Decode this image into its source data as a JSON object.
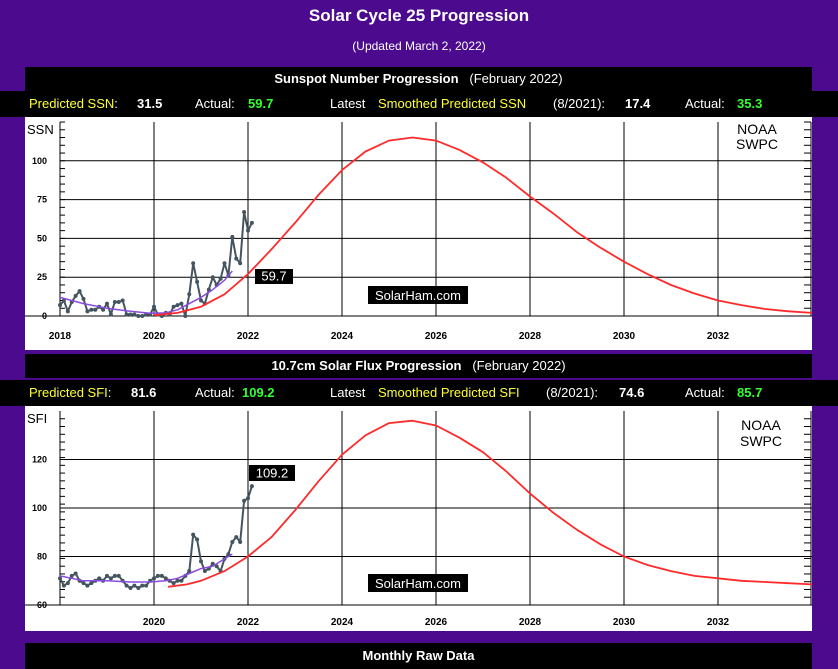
{
  "page": {
    "title": "Solar Cycle 25 Progression",
    "subtitle": "(Updated March 2, 2022)",
    "footer": "Monthly Raw Data"
  },
  "ssn_panel": {
    "title": "Sunspot Number Progression",
    "period": "(February 2022)",
    "pred_label": "Predicted SSN",
    "pred_value": "31.5",
    "actual_label": "Actual:",
    "actual_value": "59.7",
    "latest_label": "Latest",
    "smoothed_label": "Smoothed Predicted SSN",
    "smoothed_date": "(8/2021):",
    "smoothed_value": "17.4",
    "actual2_label": "Actual:",
    "actual2_value": "35.3"
  },
  "sfi_panel": {
    "title": "10.7cm Solar Flux Progression",
    "period": "(February 2022)",
    "pred_label": "Predicted SFI",
    "pred_value": "81.6",
    "actual_label": "Actual:",
    "actual_value": "109.2",
    "latest_label": "Latest",
    "smoothed_label": "Smoothed Predicted SFI",
    "smoothed_date": "(8/2021):",
    "smoothed_value": "74.6",
    "actual2_label": "Actual:",
    "actual2_value": "85.7"
  },
  "colors": {
    "background": "#4c0a8e",
    "yellow": "#ffff33",
    "green": "#33ff33",
    "prediction": "#ff2a2a",
    "smoothed": "#8a4be0",
    "monthly": "#445560"
  },
  "chart_data": [
    {
      "type": "line",
      "title": "Sunspot Number Progression",
      "ylabel": "SSN",
      "ylim": [
        0,
        125
      ],
      "xlim": [
        2018,
        2034
      ],
      "x_ticks": [
        2018,
        2020,
        2022,
        2024,
        2026,
        2028,
        2030,
        2032
      ],
      "y_ticks": [
        0,
        25,
        50,
        75,
        100
      ],
      "annotation": "59.7",
      "credit": [
        "NOAA",
        "SWPC"
      ],
      "watermark": "SolarHam.com",
      "series": [
        {
          "name": "Monthly",
          "x": [
            2018.0,
            2018.083,
            2018.167,
            2018.25,
            2018.333,
            2018.417,
            2018.5,
            2018.583,
            2018.667,
            2018.75,
            2018.833,
            2018.917,
            2019.0,
            2019.083,
            2019.167,
            2019.25,
            2019.333,
            2019.417,
            2019.5,
            2019.583,
            2019.667,
            2019.75,
            2019.833,
            2019.917,
            2020.0,
            2020.083,
            2020.167,
            2020.25,
            2020.333,
            2020.417,
            2020.5,
            2020.583,
            2020.667,
            2020.75,
            2020.833,
            2020.917,
            2021.0,
            2021.083,
            2021.167,
            2021.25,
            2021.333,
            2021.417,
            2021.5,
            2021.583,
            2021.667,
            2021.75,
            2021.833,
            2021.917,
            2022.0,
            2022.083
          ],
          "values": [
            7,
            10,
            3,
            9,
            13,
            16,
            11,
            3,
            4,
            4,
            6,
            4,
            8,
            1,
            9,
            9,
            10,
            1,
            1,
            1,
            0,
            0,
            1,
            1,
            6,
            1,
            0,
            2,
            1,
            6,
            7,
            8,
            0,
            14,
            34,
            22,
            10,
            8,
            17,
            25,
            20,
            24,
            34,
            26,
            51,
            37,
            34,
            67,
            55,
            60
          ]
        },
        {
          "name": "Smoothed",
          "x": [
            2018.0,
            2018.5,
            2019.0,
            2019.5,
            2019.917,
            2020.25,
            2020.5,
            2020.75,
            2021.0,
            2021.25,
            2021.5,
            2021.667
          ],
          "values": [
            12,
            8,
            5,
            3,
            1.8,
            2,
            4,
            8,
            12,
            17,
            23,
            29
          ]
        },
        {
          "name": "Predicted",
          "x": [
            2020.0,
            2020.5,
            2021.0,
            2021.5,
            2022.0,
            2022.5,
            2023.0,
            2023.5,
            2024.0,
            2024.5,
            2025.0,
            2025.5,
            2026.0,
            2026.5,
            2027.0,
            2027.5,
            2028.0,
            2028.5,
            2029.0,
            2029.5,
            2030.0,
            2030.5,
            2031.0,
            2031.5,
            2032.0,
            2032.5,
            2033.0,
            2033.5,
            2034.0
          ],
          "values": [
            0.5,
            2,
            6,
            14,
            27,
            43,
            60,
            78,
            94,
            106,
            113,
            115,
            113,
            107,
            99,
            89,
            77,
            66,
            54,
            44,
            35,
            27,
            20,
            14.5,
            10,
            7,
            4.5,
            3,
            2
          ]
        }
      ]
    },
    {
      "type": "line",
      "title": "10.7cm Solar Flux Progression",
      "ylabel": "SFI",
      "ylim": [
        60,
        140
      ],
      "xlim": [
        2018,
        2034
      ],
      "x_ticks": [
        2020,
        2022,
        2024,
        2026,
        2028,
        2030,
        2032
      ],
      "y_ticks": [
        60,
        80,
        100,
        120
      ],
      "annotation": "109.2",
      "credit": [
        "NOAA",
        "SWPC"
      ],
      "watermark": "SolarHam.com",
      "series": [
        {
          "name": "Monthly",
          "x": [
            2018.0,
            2018.083,
            2018.167,
            2018.25,
            2018.333,
            2018.417,
            2018.5,
            2018.583,
            2018.667,
            2018.75,
            2018.833,
            2018.917,
            2019.0,
            2019.083,
            2019.167,
            2019.25,
            2019.333,
            2019.417,
            2019.5,
            2019.583,
            2019.667,
            2019.75,
            2019.833,
            2019.917,
            2020.0,
            2020.083,
            2020.167,
            2020.25,
            2020.333,
            2020.417,
            2020.5,
            2020.583,
            2020.667,
            2020.75,
            2020.833,
            2020.917,
            2021.0,
            2021.083,
            2021.167,
            2021.25,
            2021.333,
            2021.417,
            2021.5,
            2021.583,
            2021.667,
            2021.75,
            2021.833,
            2021.917,
            2022.0,
            2022.083
          ],
          "values": [
            71,
            68,
            69,
            72,
            73,
            70,
            69,
            68,
            69,
            70,
            71,
            70,
            72,
            71,
            72,
            72,
            70,
            68,
            67,
            68,
            67,
            68,
            68,
            70,
            71,
            72,
            72,
            71,
            70,
            69,
            70,
            70,
            72,
            74,
            89,
            87,
            78,
            74,
            75,
            77,
            76,
            74,
            79,
            81,
            86,
            88,
            86,
            103,
            104,
            109
          ]
        },
        {
          "name": "Smoothed",
          "x": [
            2018.0,
            2018.5,
            2019.0,
            2019.5,
            2019.917,
            2020.25,
            2020.5,
            2020.75,
            2021.0,
            2021.25,
            2021.5,
            2021.667
          ],
          "values": [
            72,
            70,
            70,
            69.5,
            69.5,
            70,
            71,
            73,
            75,
            76,
            79,
            81
          ]
        },
        {
          "name": "Predicted",
          "x": [
            2020.3,
            2020.7,
            2021.0,
            2021.5,
            2022.0,
            2022.5,
            2023.0,
            2023.5,
            2024.0,
            2024.5,
            2025.0,
            2025.5,
            2026.0,
            2026.5,
            2027.0,
            2027.5,
            2028.0,
            2028.5,
            2029.0,
            2029.5,
            2030.0,
            2030.5,
            2031.0,
            2031.5,
            2032.0,
            2032.5,
            2033.0,
            2033.5,
            2034.0
          ],
          "values": [
            67.5,
            68.5,
            70,
            74,
            80,
            88,
            99,
            111,
            122,
            130,
            135,
            136,
            134,
            129,
            123,
            115,
            106,
            98,
            91,
            85,
            80,
            76.5,
            74,
            72,
            71,
            70,
            69.5,
            69,
            68.5
          ]
        }
      ]
    }
  ]
}
